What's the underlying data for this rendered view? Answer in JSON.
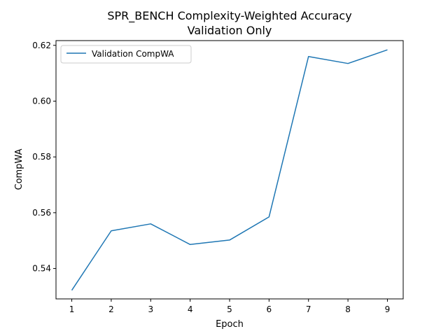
{
  "chart_data": {
    "type": "line",
    "title_line1": "SPR_BENCH Complexity-Weighted Accuracy",
    "title_line2": "Validation Only",
    "xlabel": "Epoch",
    "ylabel": "CompWA",
    "xlim": [
      0.6,
      9.4
    ],
    "ylim": [
      0.5291,
      0.6217
    ],
    "x_ticks": [
      1,
      2,
      3,
      4,
      5,
      6,
      7,
      8,
      9
    ],
    "y_ticks": [
      0.54,
      0.56,
      0.58,
      0.6,
      0.62
    ],
    "y_tick_labels": [
      "0.54",
      "0.56",
      "0.58",
      "0.60",
      "0.62"
    ],
    "legend_position": "upper-left",
    "grid": false,
    "series": [
      {
        "name": "Validation CompWA",
        "color": "#1f77b4",
        "x": [
          1,
          2,
          3,
          4,
          5,
          6,
          7,
          8,
          9
        ],
        "values": [
          0.5322,
          0.5535,
          0.556,
          0.5486,
          0.5502,
          0.5585,
          0.616,
          0.6135,
          0.6184
        ]
      }
    ]
  }
}
